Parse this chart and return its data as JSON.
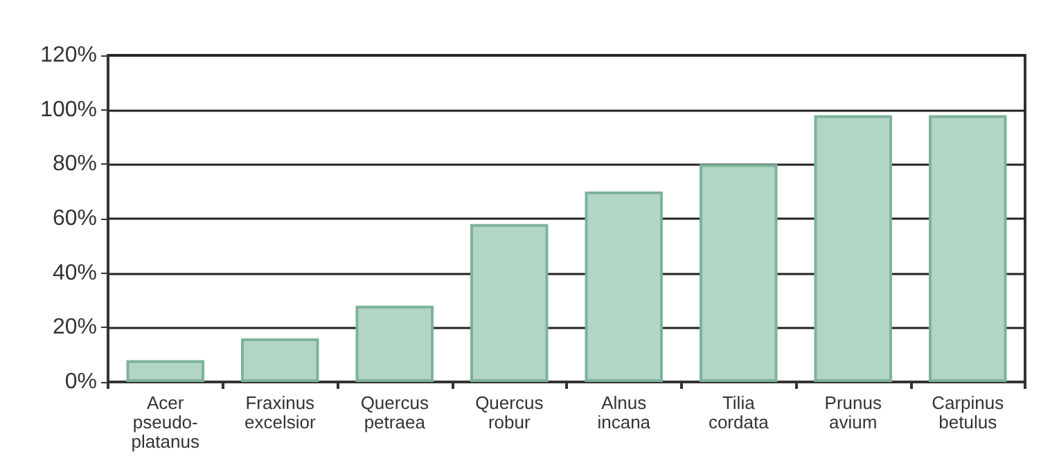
{
  "chart_data": {
    "type": "bar",
    "categories": [
      "Acer\npseudo-\nplatanus",
      "Fraxinus\nexcelsior",
      "Quercus\npetraea",
      "Quercus\nrobur",
      "Alnus\nincana",
      "Tilia\ncordata",
      "Prunus\navium",
      "Carpinus\nbetulus"
    ],
    "values": [
      8,
      16,
      28,
      58,
      70,
      80,
      98,
      98
    ],
    "color": "#b3d5c5",
    "ylim": [
      0,
      120
    ],
    "yticks": [
      {
        "value": 0,
        "label": "0%"
      },
      {
        "value": 20,
        "label": "20%"
      },
      {
        "value": 40,
        "label": "40%"
      },
      {
        "value": 60,
        "label": "60%"
      },
      {
        "value": 80,
        "label": "80%"
      },
      {
        "value": 100,
        "label": "100%"
      },
      {
        "value": 120,
        "label": "120%"
      }
    ],
    "grid": "y"
  }
}
